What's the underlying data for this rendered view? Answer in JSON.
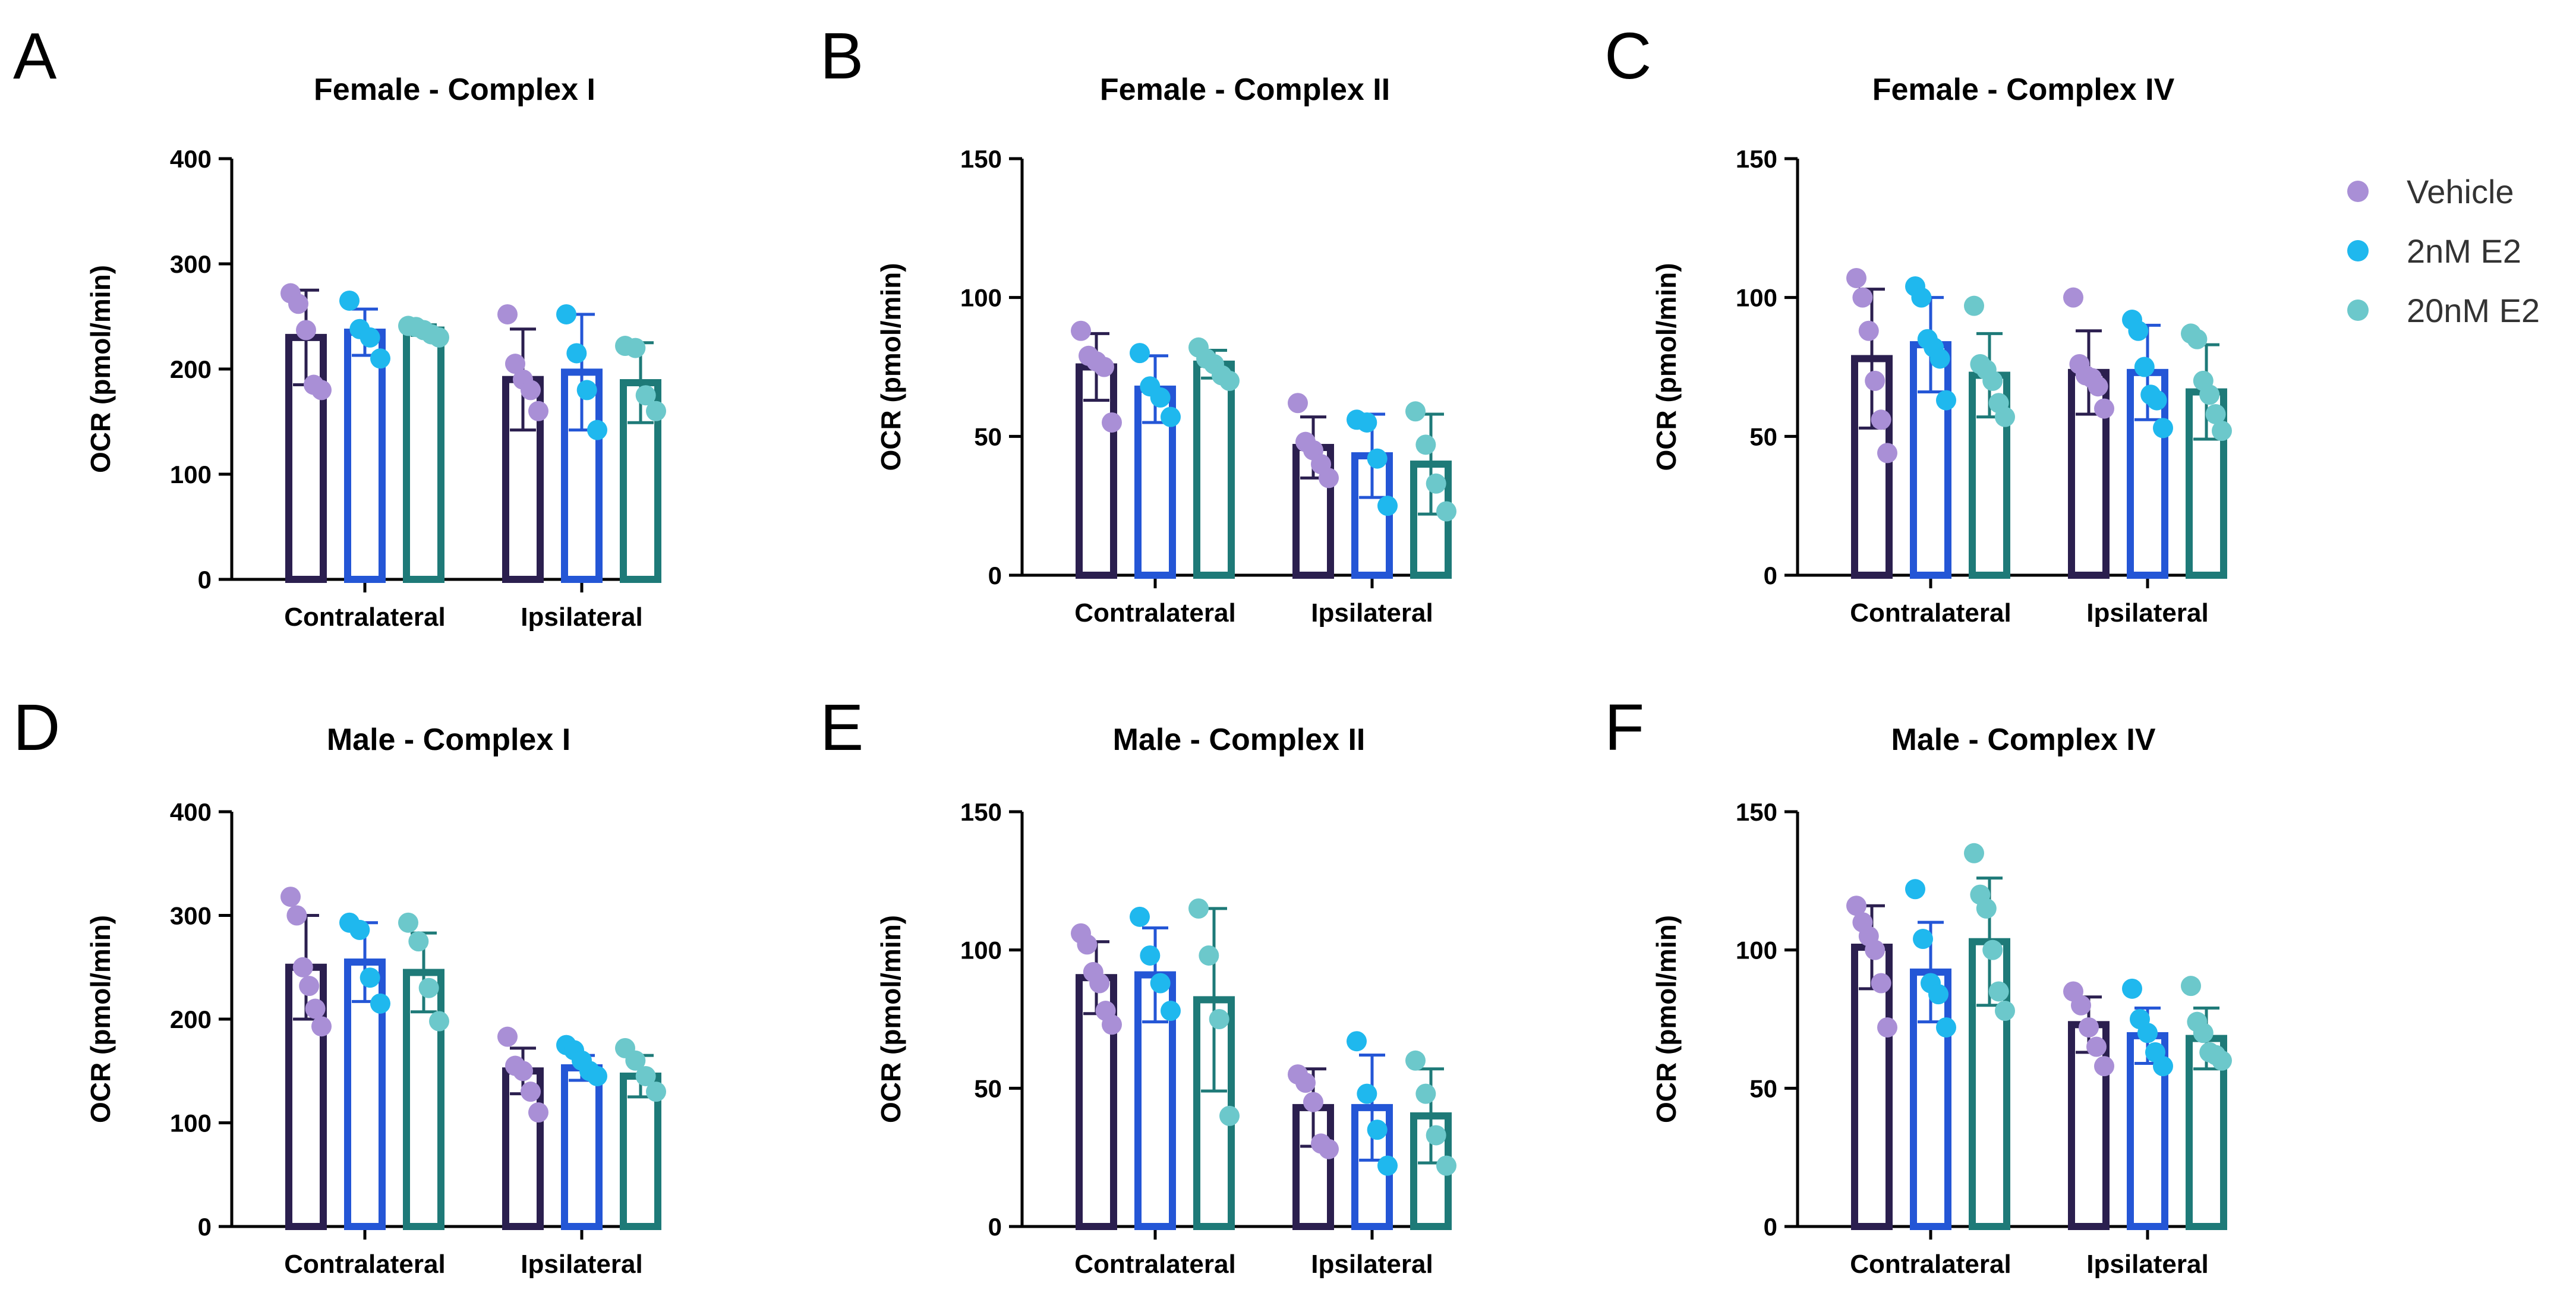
{
  "colors": {
    "vehicle_dot": "#a98fd6",
    "e2_2nm_dot": "#1fb8ee",
    "e2_20nm_dot": "#6cc8cb",
    "vehicle_bar": "#2b1f4f",
    "e2_2nm_bar": "#2456d6",
    "e2_20nm_bar": "#1e7a78",
    "axis": "#000000"
  },
  "legend": [
    {
      "label": "Vehicle",
      "color": "#a98fd6"
    },
    {
      "label": "2nM E2",
      "color": "#1fb8ee"
    },
    {
      "label": "20nM E2",
      "color": "#6cc8cb"
    }
  ],
  "chart_data": [
    {
      "panel": "A",
      "type": "bar",
      "title": "Female - Complex I",
      "ylabel": "OCR (pmol/min)",
      "ylim": [
        0,
        400
      ],
      "yticks": [
        0,
        100,
        200,
        300,
        400
      ],
      "categories": [
        "Contralateral",
        "Ipsilateral"
      ],
      "series": [
        {
          "name": "Vehicle",
          "values": [
            230,
            190
          ],
          "errors": [
            45,
            48
          ],
          "points": [
            [
              272,
              262,
              237,
              185,
              180
            ],
            [
              252,
              205,
              190,
              180,
              160
            ]
          ]
        },
        {
          "name": "2nM E2",
          "values": [
            235,
            197
          ],
          "errors": [
            22,
            55
          ],
          "points": [
            [
              265,
              238,
              230,
              210
            ],
            [
              252,
              215,
              180,
              142
            ]
          ]
        },
        {
          "name": "20nM E2",
          "values": [
            237,
            187
          ],
          "errors": [
            5,
            38
          ],
          "points": [
            [
              241,
              240,
              237,
              233,
              230
            ],
            [
              222,
              220,
              175,
              160
            ]
          ]
        }
      ]
    },
    {
      "panel": "B",
      "type": "bar",
      "title": "Female - Complex II",
      "ylabel": "OCR (pmol/min)",
      "ylim": [
        0,
        150
      ],
      "yticks": [
        0,
        50,
        100,
        150
      ],
      "categories": [
        "Contralateral",
        "Ipsilateral"
      ],
      "series": [
        {
          "name": "Vehicle",
          "values": [
            75,
            46
          ],
          "errors": [
            12,
            11
          ],
          "points": [
            [
              88,
              79,
              77,
              75,
              55
            ],
            [
              62,
              48,
              45,
              40,
              35
            ]
          ]
        },
        {
          "name": "2nM E2",
          "values": [
            67,
            43
          ],
          "errors": [
            12,
            15
          ],
          "points": [
            [
              80,
              68,
              64,
              57
            ],
            [
              56,
              55,
              42,
              25
            ]
          ]
        },
        {
          "name": "20nM E2",
          "values": [
            76,
            40
          ],
          "errors": [
            5,
            18
          ],
          "points": [
            [
              82,
              78,
              76,
              72,
              70
            ],
            [
              59,
              47,
              33,
              23
            ]
          ]
        }
      ]
    },
    {
      "panel": "C",
      "type": "bar",
      "title": "Female - Complex IV",
      "ylabel": "OCR (pmol/min)",
      "ylim": [
        0,
        150
      ],
      "yticks": [
        0,
        50,
        100,
        150
      ],
      "categories": [
        "Contralateral",
        "Ipsilateral"
      ],
      "series": [
        {
          "name": "Vehicle",
          "values": [
            78,
            73
          ],
          "errors": [
            25,
            15
          ],
          "points": [
            [
              107,
              100,
              88,
              70,
              56,
              44
            ],
            [
              100,
              76,
              72,
              71,
              68,
              60
            ]
          ]
        },
        {
          "name": "2nM E2",
          "values": [
            83,
            73
          ],
          "errors": [
            17,
            17
          ],
          "points": [
            [
              104,
              100,
              85,
              82,
              78,
              63
            ],
            [
              92,
              88,
              75,
              65,
              63,
              53
            ]
          ]
        },
        {
          "name": "20nM E2",
          "values": [
            72,
            66
          ],
          "errors": [
            15,
            17
          ],
          "points": [
            [
              97,
              76,
              74,
              70,
              62,
              57
            ],
            [
              87,
              85,
              70,
              65,
              58,
              52
            ]
          ]
        }
      ]
    },
    {
      "panel": "D",
      "type": "bar",
      "title": "Male - Complex I",
      "ylabel": "OCR (pmol/min)",
      "ylim": [
        0,
        400
      ],
      "yticks": [
        0,
        100,
        200,
        300,
        400
      ],
      "categories": [
        "Contralateral",
        "Ipsilateral"
      ],
      "series": [
        {
          "name": "Vehicle",
          "values": [
            250,
            150
          ],
          "errors": [
            50,
            22
          ],
          "points": [
            [
              318,
              300,
              250,
              232,
              210,
              193
            ],
            [
              183,
              155,
              150,
              130,
              110
            ]
          ]
        },
        {
          "name": "2nM E2",
          "values": [
            255,
            153
          ],
          "errors": [
            38,
            12
          ],
          "points": [
            [
              293,
              286,
              240,
              215
            ],
            [
              175,
              170,
              160,
              150,
              145
            ]
          ]
        },
        {
          "name": "20nM E2",
          "values": [
            245,
            145
          ],
          "errors": [
            38,
            20
          ],
          "points": [
            [
              293,
              275,
              230,
              198
            ],
            [
              172,
              160,
              145,
              130
            ]
          ]
        }
      ]
    },
    {
      "panel": "E",
      "type": "bar",
      "title": "Male - Complex II",
      "ylabel": "OCR (pmol/min)",
      "ylim": [
        0,
        150
      ],
      "yticks": [
        0,
        50,
        100,
        150
      ],
      "categories": [
        "Contralateral",
        "Ipsilateral"
      ],
      "series": [
        {
          "name": "Vehicle",
          "values": [
            90,
            43
          ],
          "errors": [
            13,
            14
          ],
          "points": [
            [
              106,
              102,
              92,
              88,
              78,
              73
            ],
            [
              55,
              52,
              45,
              30,
              28
            ]
          ]
        },
        {
          "name": "2nM E2",
          "values": [
            91,
            43
          ],
          "errors": [
            17,
            19
          ],
          "points": [
            [
              112,
              98,
              88,
              78
            ],
            [
              67,
              48,
              35,
              22
            ]
          ]
        },
        {
          "name": "20nM E2",
          "values": [
            82,
            40
          ],
          "errors": [
            33,
            17
          ],
          "points": [
            [
              115,
              98,
              75,
              40
            ],
            [
              60,
              48,
              33,
              22
            ]
          ]
        }
      ]
    },
    {
      "panel": "F",
      "type": "bar",
      "title": "Male - Complex IV",
      "ylabel": "OCR (pmol/min)",
      "ylim": [
        0,
        150
      ],
      "yticks": [
        0,
        50,
        100,
        150
      ],
      "categories": [
        "Contralateral",
        "Ipsilateral"
      ],
      "series": [
        {
          "name": "Vehicle",
          "values": [
            101,
            73
          ],
          "errors": [
            15,
            10
          ],
          "points": [
            [
              116,
              110,
              105,
              100,
              88,
              72
            ],
            [
              85,
              80,
              72,
              65,
              58
            ]
          ]
        },
        {
          "name": "2nM E2",
          "values": [
            92,
            69
          ],
          "errors": [
            18,
            10
          ],
          "points": [
            [
              122,
              104,
              88,
              84,
              72
            ],
            [
              86,
              75,
              70,
              63,
              58
            ]
          ]
        },
        {
          "name": "20nM E2",
          "values": [
            103,
            68
          ],
          "errors": [
            23,
            11
          ],
          "points": [
            [
              135,
              120,
              115,
              100,
              85,
              78
            ],
            [
              87,
              74,
              70,
              63,
              62,
              60
            ]
          ]
        }
      ]
    }
  ]
}
